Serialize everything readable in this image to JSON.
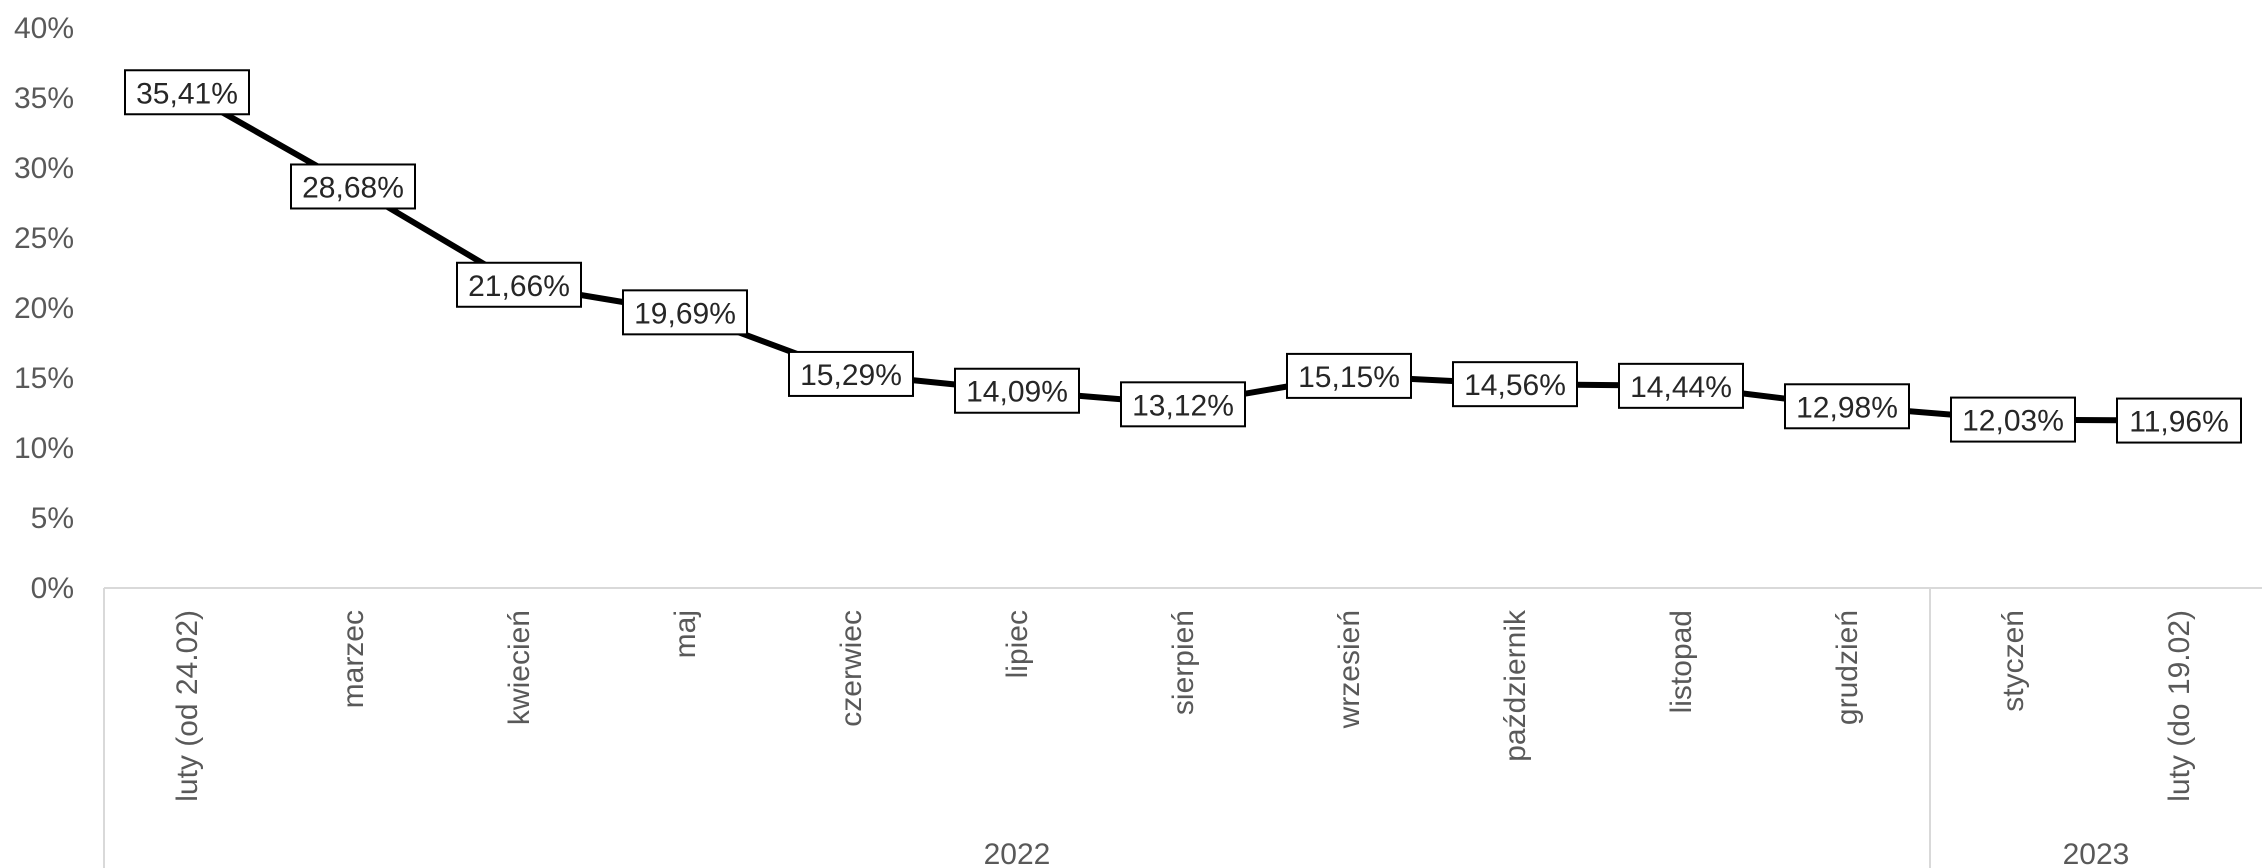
{
  "chart_data": {
    "type": "line",
    "categories": [
      "luty (od 24.02)",
      "marzec",
      "kwiecień",
      "maj",
      "czerwiec",
      "lipiec",
      "sierpień",
      "wrzesień",
      "październik",
      "listopad",
      "grudzień",
      "styczeń",
      "luty (do 19.02)"
    ],
    "category_groups": [
      {
        "label": "2022",
        "count": 11
      },
      {
        "label": "2023",
        "count": 2
      }
    ],
    "series": [
      {
        "values": [
          35.41,
          28.68,
          21.66,
          19.69,
          15.29,
          14.09,
          13.12,
          15.15,
          14.56,
          14.44,
          12.98,
          12.03,
          11.96
        ]
      }
    ],
    "data_labels": [
      "35,41%",
      "28,68%",
      "21,66%",
      "19,69%",
      "15,29%",
      "14,09%",
      "13,12%",
      "15,15%",
      "14,56%",
      "14,44%",
      "12,98%",
      "12,03%",
      "11,96%"
    ],
    "y_ticks": [
      "0%",
      "5%",
      "10%",
      "15%",
      "20%",
      "25%",
      "30%",
      "35%",
      "40%"
    ],
    "ylim": [
      0,
      40
    ],
    "title": "",
    "xlabel": "",
    "ylabel": "",
    "grid": false,
    "legend": "none",
    "line_color": "#000000"
  }
}
